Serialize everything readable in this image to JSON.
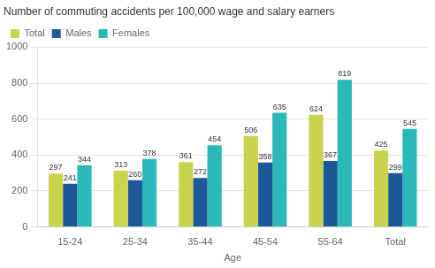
{
  "chart_data": {
    "type": "bar",
    "title": "Number of commuting accidents per 100,000 wage and salary earners",
    "x_label": "Age",
    "categories": [
      "15-24",
      "25-34",
      "35-44",
      "45-54",
      "55-64",
      "Total"
    ],
    "series": [
      {
        "name": "Total",
        "color": "#c8d44e",
        "values": [
          297,
          313,
          361,
          506,
          624,
          425
        ]
      },
      {
        "name": "Males",
        "color": "#1e5799",
        "values": [
          241,
          260,
          272,
          358,
          367,
          299
        ]
      },
      {
        "name": "Females",
        "color": "#2ab8b8",
        "values": [
          344,
          378,
          454,
          635,
          819,
          545
        ]
      }
    ],
    "ylim": [
      0,
      1000
    ],
    "yticks": [
      0,
      200,
      400,
      600,
      800,
      1000
    ],
    "grid": "y",
    "legend": "upper left",
    "data_labels": true
  }
}
